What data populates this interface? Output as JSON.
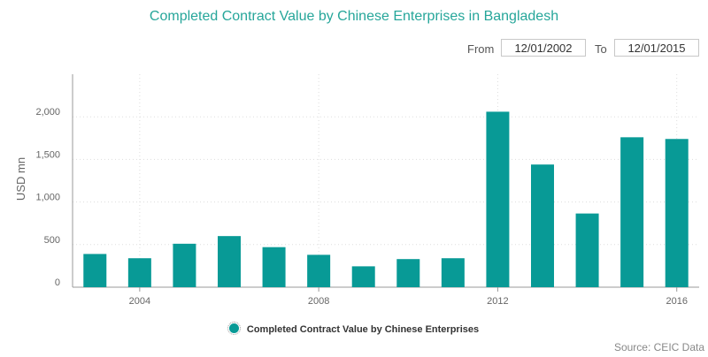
{
  "header": {
    "title": "Completed Contract Value by Chinese Enterprises in Bangladesh"
  },
  "date_range": {
    "from_label": "From",
    "from_value": "12/01/2002",
    "to_label": "To",
    "to_value": "12/01/2015"
  },
  "footer": {
    "source": "Source: CEIC Data"
  },
  "colors": {
    "bar": "#089a96",
    "title": "#26a69a"
  },
  "chart_data": {
    "type": "bar",
    "title": "Completed Contract Value by Chinese Enterprises in Bangladesh",
    "ylabel": "USD mn",
    "xlabel": "",
    "ylim": [
      0,
      2500
    ],
    "yticks": [
      0,
      500,
      1000,
      1500,
      2000
    ],
    "ytick_labels": [
      "0",
      "500",
      "1,000",
      "1,500",
      "2,000"
    ],
    "xticks": [
      2004,
      2008,
      2012,
      2016
    ],
    "xtick_labels": [
      "2004",
      "2008",
      "2012",
      "2016"
    ],
    "x": [
      2003,
      2004,
      2005,
      2006,
      2007,
      2008,
      2009,
      2010,
      2011,
      2012,
      2013,
      2014,
      2015,
      2016
    ],
    "values": [
      390,
      340,
      510,
      600,
      470,
      380,
      245,
      330,
      340,
      2060,
      1440,
      865,
      1760,
      1740
    ],
    "grid": true,
    "legend": "bottom-center",
    "series_name": "Completed Contract Value by Chinese Enterprises"
  }
}
